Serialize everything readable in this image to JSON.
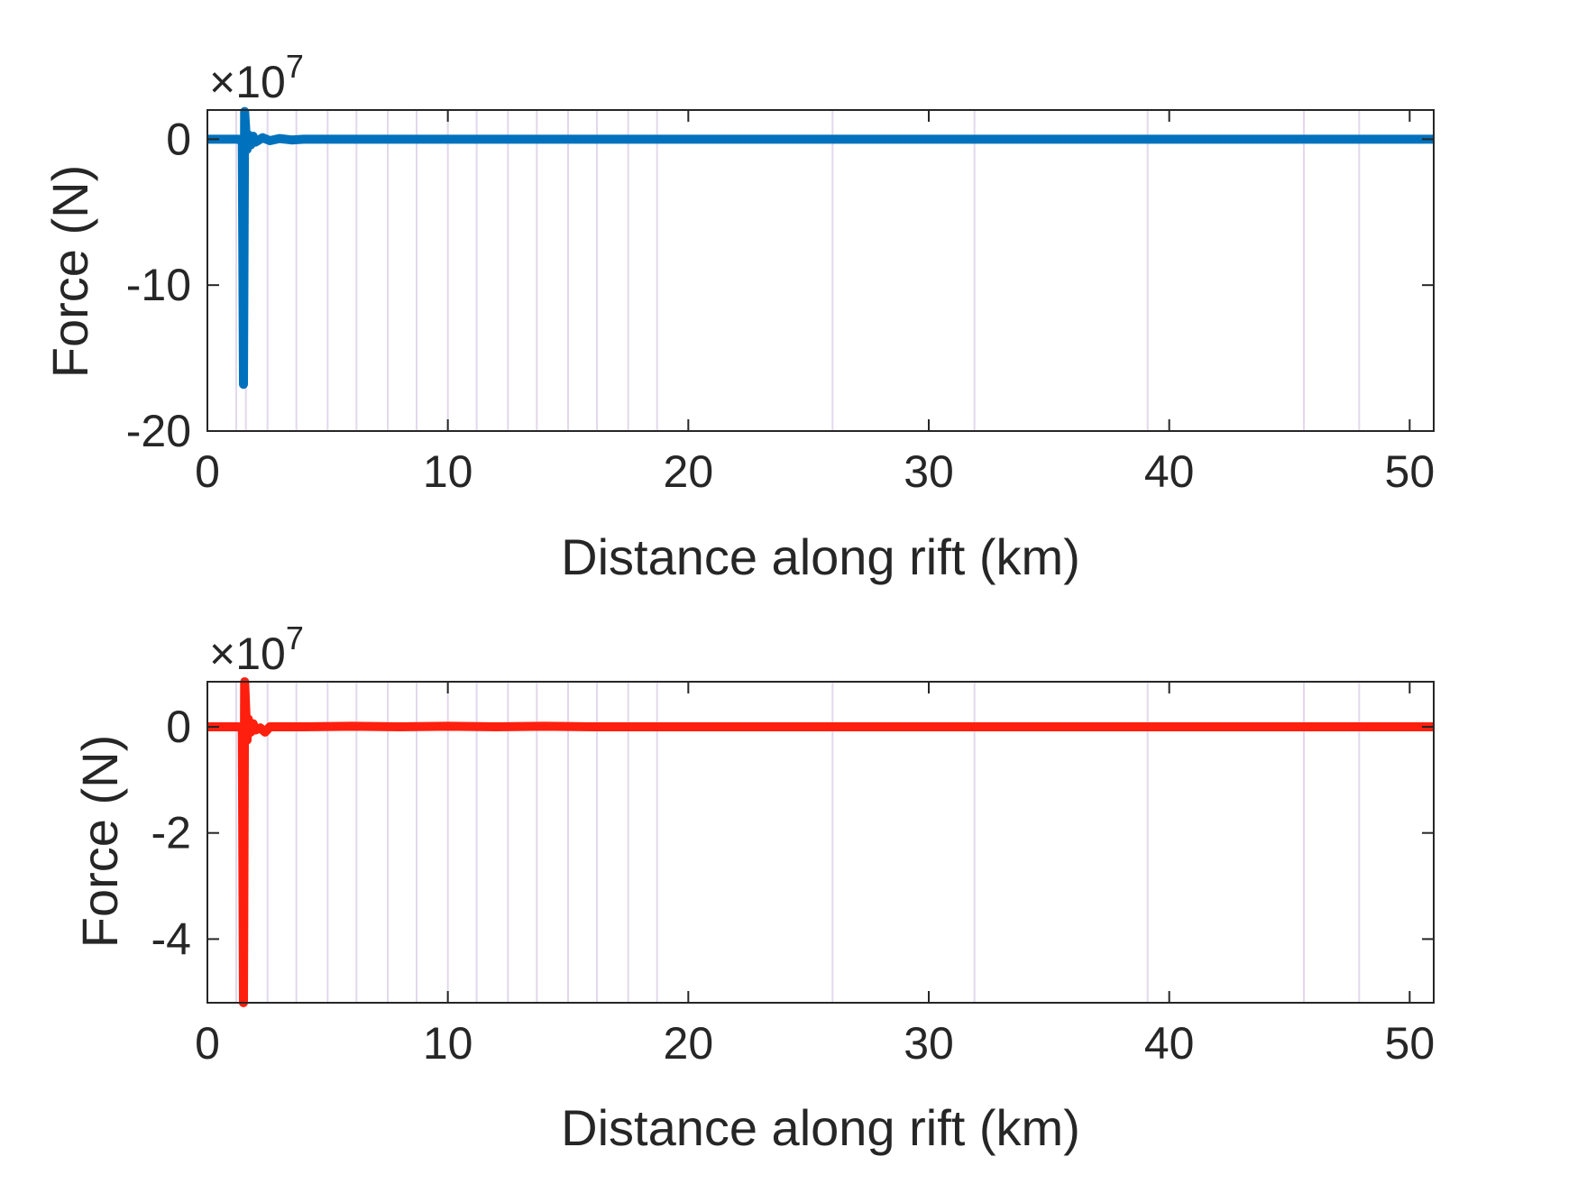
{
  "chart_data": [
    {
      "type": "line",
      "xlabel": "Distance along rift (km)",
      "ylabel": "Force (N)",
      "y_exponent_label": "×10",
      "y_exponent": "7",
      "xlim": [
        0,
        51
      ],
      "ylim": [
        -20,
        2
      ],
      "xticks": [
        0,
        10,
        20,
        30,
        40,
        50
      ],
      "xtick_labels": [
        "0",
        "10",
        "20",
        "30",
        "40",
        "50"
      ],
      "yticks": [
        0,
        -10,
        -20
      ],
      "ytick_labels": [
        "0",
        "-10",
        "-20"
      ],
      "grid": false,
      "vertical_lines_km": [
        1.2,
        1.6,
        2.5,
        3.7,
        5.0,
        6.2,
        7.5,
        8.7,
        10.0,
        11.2,
        12.5,
        13.7,
        15.0,
        16.2,
        17.5,
        18.7,
        26.0,
        31.9,
        39.1,
        45.6,
        47.9
      ],
      "vertical_line_color": "#e2d8ec",
      "series": [
        {
          "color": "#0072bd",
          "x": [
            0,
            1.3,
            1.45,
            1.5,
            1.55,
            1.6,
            1.65,
            1.7,
            1.8,
            1.9,
            2.0,
            2.3,
            2.6,
            3.0,
            3.5,
            4.0,
            6.0,
            10.0,
            20.0,
            30.0,
            40.0,
            51.0
          ],
          "y": [
            0,
            0,
            -0.2,
            -16.8,
            1.9,
            0.5,
            -0.7,
            0.3,
            -0.4,
            0.2,
            -0.2,
            0.1,
            -0.1,
            0.05,
            -0.05,
            0,
            0,
            0,
            0,
            0,
            0,
            0
          ]
        }
      ]
    },
    {
      "type": "line",
      "xlabel": "Distance along rift (km)",
      "ylabel": "Force (N)",
      "y_exponent_label": "×10",
      "y_exponent": "7",
      "xlim": [
        0,
        51
      ],
      "ylim": [
        -5.2,
        0.85
      ],
      "xticks": [
        0,
        10,
        20,
        30,
        40,
        50
      ],
      "xtick_labels": [
        "0",
        "10",
        "20",
        "30",
        "40",
        "50"
      ],
      "yticks": [
        0,
        -2,
        -4
      ],
      "ytick_labels": [
        "0",
        "-2",
        "-4"
      ],
      "grid": false,
      "vertical_lines_km": [
        1.2,
        1.6,
        2.5,
        3.7,
        5.0,
        6.2,
        7.5,
        8.7,
        10.0,
        11.2,
        12.5,
        13.7,
        15.0,
        16.2,
        17.5,
        18.7,
        26.0,
        31.9,
        39.1,
        45.6,
        47.9
      ],
      "vertical_line_color": "#e2d8ec",
      "series": [
        {
          "color": "#ff1f0f",
          "x": [
            0,
            1.3,
            1.45,
            1.5,
            1.55,
            1.6,
            1.65,
            1.7,
            1.8,
            1.9,
            2.0,
            2.2,
            2.4,
            2.6,
            3.0,
            4.0,
            6.0,
            8.0,
            10.0,
            12.0,
            14.0,
            16.0,
            20.0,
            30.0,
            40.0,
            51.0
          ],
          "y": [
            0,
            0,
            -0.05,
            -5.2,
            0.85,
            0.25,
            -0.25,
            0.15,
            -0.1,
            0.06,
            -0.06,
            -0.02,
            -0.1,
            0.0,
            0.0,
            0.0,
            0.01,
            0.0,
            0.01,
            0.0,
            0.01,
            0.0,
            0.0,
            0.0,
            0.0,
            0.0
          ]
        }
      ]
    }
  ]
}
